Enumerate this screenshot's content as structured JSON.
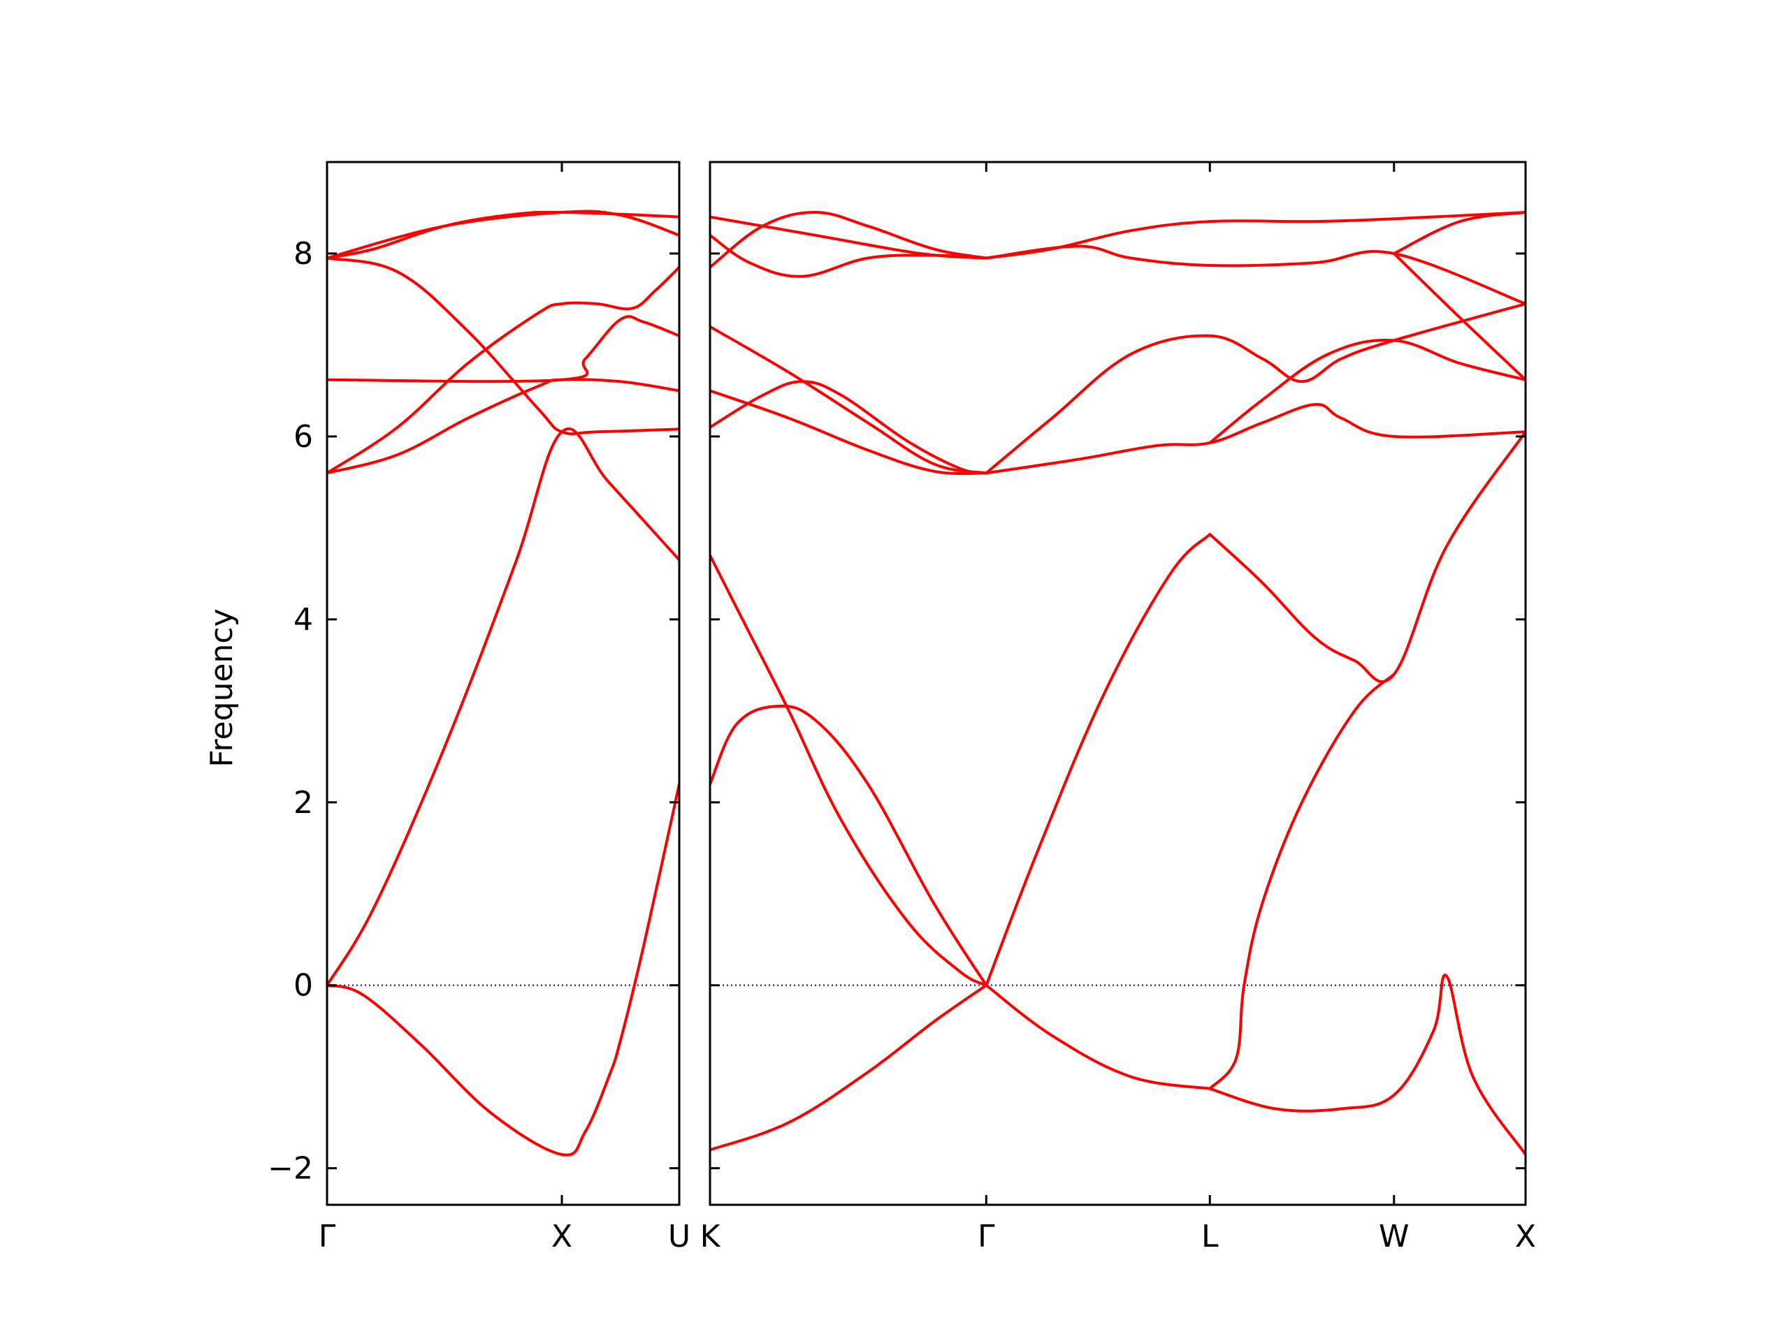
{
  "chart_data": {
    "type": "line",
    "ylabel": "Frequency",
    "ylim": [
      -2.4,
      9.0
    ],
    "yticks": [
      -2,
      0,
      2,
      4,
      6,
      8
    ],
    "ytick_labels": [
      "−2",
      "0",
      "2",
      "4",
      "6",
      "8"
    ],
    "grid": false,
    "line_color": "#ff0000",
    "zero_line_color": "#0000cc",
    "panels": [
      {
        "xlim": [
          0,
          1.5
        ],
        "ticks": [
          {
            "x": 0,
            "label": "Γ"
          },
          {
            "x": 1.0,
            "label": "X"
          },
          {
            "x": 1.5,
            "label": "U"
          }
        ],
        "series": [
          {
            "x": [
              0,
              0.2,
              0.5,
              0.8,
              1.0,
              1.2,
              1.5
            ],
            "y": [
              0,
              0.85,
              2.6,
              4.6,
              6.05,
              5.5,
              4.65
            ]
          },
          {
            "x": [
              0,
              0.15,
              0.4,
              0.7,
              1.0,
              1.1,
              1.2,
              1.25,
              1.35,
              1.5
            ],
            "y": [
              0,
              -0.1,
              -0.65,
              -1.4,
              -1.85,
              -1.6,
              -1.0,
              -0.6,
              0.45,
              2.2
            ]
          },
          {
            "x": [
              0,
              0.3,
              0.6,
              0.9,
              1.0,
              1.15,
              1.5
            ],
            "y": [
              7.95,
              7.8,
              7.15,
              6.3,
              6.05,
              6.05,
              6.08
            ]
          },
          {
            "x": [
              0,
              0.3,
              0.6,
              0.9,
              1.0,
              1.25,
              1.5
            ],
            "y": [
              5.6,
              5.8,
              6.2,
              6.55,
              6.62,
              6.6,
              6.5
            ]
          },
          {
            "x": [
              0,
              0.3,
              0.6,
              0.9,
              1.0,
              1.15,
              1.3,
              1.4,
              1.5
            ],
            "y": [
              5.6,
              6.1,
              6.8,
              7.35,
              7.45,
              7.45,
              7.4,
              7.6,
              7.85
            ]
          },
          {
            "x": [
              0,
              1.0,
              1.1,
              1.25,
              1.35,
              1.5
            ],
            "y": [
              6.62,
              6.62,
              6.85,
              7.28,
              7.25,
              7.1
            ]
          },
          {
            "x": [
              0,
              0.2,
              0.5,
              0.8,
              1.0,
              1.25,
              1.5
            ],
            "y": [
              7.95,
              8.05,
              8.3,
              8.43,
              8.45,
              8.43,
              8.4
            ]
          },
          {
            "x": [
              0,
              0.5,
              1.0,
              1.25,
              1.5
            ],
            "y": [
              7.95,
              8.3,
              8.45,
              8.42,
              8.2
            ]
          }
        ]
      },
      {
        "xlim": [
          0,
          3.1
        ],
        "ticks": [
          {
            "x": 0,
            "label": "K"
          },
          {
            "x": 1.05,
            "label": "Γ"
          },
          {
            "x": 1.9,
            "label": "L"
          },
          {
            "x": 2.6,
            "label": "W"
          },
          {
            "x": 3.1,
            "label": "X"
          }
        ],
        "series": [
          {
            "x": [
              0,
              0.15,
              0.3,
              0.5,
              0.75,
              0.95,
              1.05
            ],
            "y": [
              4.7,
              3.85,
              3.0,
              1.8,
              0.7,
              0.15,
              0
            ]
          },
          {
            "x": [
              0,
              0.1,
              0.25,
              0.4,
              0.6,
              0.85,
              1.05
            ],
            "y": [
              2.2,
              2.85,
              3.05,
              2.9,
              2.2,
              0.9,
              0
            ]
          },
          {
            "x": [
              0,
              0.3,
              0.6,
              0.85,
              1.05
            ],
            "y": [
              -1.8,
              -1.5,
              -0.95,
              -0.4,
              0
            ]
          },
          {
            "x": [
              1.05,
              1.25,
              1.5,
              1.75,
              1.9
            ],
            "y": [
              0,
              1.5,
              3.2,
              4.5,
              4.93
            ]
          },
          {
            "x": [
              1.05,
              1.3,
              1.6,
              1.9
            ],
            "y": [
              0,
              -0.55,
              -1.0,
              -1.13
            ]
          },
          {
            "x": [
              1.9,
              2.0,
              2.03,
              2.1,
              2.25,
              2.45,
              2.6
            ],
            "y": [
              -1.13,
              -0.8,
              0,
              0.9,
              2.0,
              3.0,
              3.4
            ]
          },
          {
            "x": [
              1.9,
              2.1,
              2.3,
              2.45,
              2.6,
              2.8,
              3.1
            ],
            "y": [
              4.93,
              4.4,
              3.8,
              3.55,
              3.4,
              4.8,
              6.05
            ]
          },
          {
            "x": [
              1.9,
              2.15,
              2.4,
              2.6,
              2.75,
              2.8,
              2.9,
              3.1
            ],
            "y": [
              -1.13,
              -1.35,
              -1.35,
              -1.2,
              -0.5,
              0.1,
              -1.0,
              -1.85
            ]
          },
          {
            "x": [
              0,
              0.3,
              0.6,
              0.85,
              1.05
            ],
            "y": [
              6.5,
              6.2,
              5.85,
              5.62,
              5.6
            ]
          },
          {
            "x": [
              0,
              0.2,
              0.35,
              0.5,
              0.75,
              0.95,
              1.05
            ],
            "y": [
              6.1,
              6.45,
              6.6,
              6.45,
              5.95,
              5.65,
              5.6
            ]
          },
          {
            "x": [
              0,
              0.3,
              0.6,
              0.85,
              1.05
            ],
            "y": [
              7.2,
              6.7,
              6.15,
              5.7,
              5.6
            ]
          },
          {
            "x": [
              1.05,
              1.4,
              1.7,
              1.9,
              2.1,
              2.3,
              2.4,
              2.6,
              3.1
            ],
            "y": [
              5.6,
              5.75,
              5.9,
              5.93,
              6.15,
              6.35,
              6.2,
              6.0,
              6.05
            ]
          },
          {
            "x": [
              1.05,
              1.3,
              1.6,
              1.9,
              2.1,
              2.25,
              2.4,
              2.6,
              3.1
            ],
            "y": [
              5.6,
              6.2,
              6.9,
              7.1,
              6.85,
              6.6,
              6.85,
              7.05,
              7.45
            ]
          },
          {
            "x": [
              1.9,
              2.1,
              2.35,
              2.6,
              2.85,
              3.1
            ],
            "y": [
              5.93,
              6.4,
              6.9,
              7.05,
              6.8,
              6.62
            ]
          },
          {
            "x": [
              0,
              0.2,
              0.4,
              0.6,
              0.85,
              1.05
            ],
            "y": [
              7.85,
              8.3,
              8.45,
              8.3,
              8.05,
              7.95
            ]
          },
          {
            "x": [
              0,
              0.15,
              0.35,
              0.6,
              0.85,
              1.05
            ],
            "y": [
              8.2,
              7.9,
              7.75,
              7.95,
              7.98,
              7.95
            ]
          },
          {
            "x": [
              0,
              0.4,
              0.8,
              1.05
            ],
            "y": [
              8.4,
              8.2,
              8.0,
              7.95
            ]
          },
          {
            "x": [
              1.05,
              1.3,
              1.6,
              1.9,
              2.3,
              2.6,
              3.1
            ],
            "y": [
              7.95,
              8.05,
              8.25,
              8.35,
              8.35,
              8.38,
              8.45
            ]
          },
          {
            "x": [
              1.05,
              1.4,
              1.6,
              1.9,
              2.3,
              2.6,
              3.1
            ],
            "y": [
              7.95,
              8.08,
              7.95,
              7.87,
              7.9,
              8.0,
              7.45
            ]
          },
          {
            "x": [
              2.6,
              2.85,
              3.1
            ],
            "y": [
              8.0,
              7.3,
              6.62
            ]
          },
          {
            "x": [
              2.6,
              2.85,
              3.1
            ],
            "y": [
              8.0,
              8.35,
              8.45
            ]
          }
        ]
      }
    ]
  }
}
